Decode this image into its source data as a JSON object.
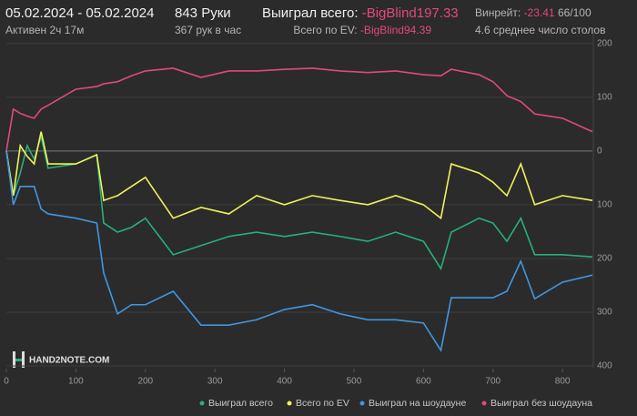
{
  "header": {
    "date_range": "05.02.2024 - 05.02.2024",
    "active": "Активен 2ч 17м",
    "hands": "843 Руки",
    "hands_per_hour": "367 рук в час",
    "won_label": "Выиграл всего:",
    "won_value": "-BigBlind197.33",
    "ev_label": "Всего по EV:",
    "ev_value": "-BigBlind94.39",
    "winrate_label": "Винрейт:",
    "winrate_value": "-23.41",
    "winrate_unit": "66/100",
    "tables": "4.6 среднее число столов",
    "logo": "HAND2NOTE.COM"
  },
  "chart_data": {
    "type": "line",
    "x": [
      0,
      10,
      20,
      30,
      40,
      50,
      60,
      100,
      130,
      140,
      160,
      180,
      200,
      240,
      280,
      320,
      360,
      400,
      440,
      480,
      520,
      560,
      600,
      625,
      640,
      680,
      700,
      720,
      740,
      760,
      800,
      843
    ],
    "series": [
      {
        "name": "Выиграл всего",
        "color": "#27b07a",
        "values": [
          0,
          -83,
          -41,
          10,
          -15,
          27,
          -32,
          -24,
          -7,
          -134,
          -151,
          -142,
          -125,
          -193,
          -176,
          -159,
          -151,
          -159,
          -151,
          -159,
          -168,
          -151,
          -168,
          -219,
          -151,
          -125,
          -134,
          -168,
          -125,
          -193,
          -193,
          -197
        ]
      },
      {
        "name": "Всего по EV",
        "color": "#f2f25a",
        "values": [
          0,
          -83,
          10,
          -10,
          -24,
          36,
          -24,
          -24,
          -7,
          -92,
          -83,
          -66,
          -49,
          -125,
          -105,
          -117,
          -83,
          -100,
          -83,
          -92,
          -100,
          -83,
          -100,
          -125,
          -24,
          -41,
          -58,
          -83,
          -24,
          -100,
          -83,
          -92
        ]
      },
      {
        "name": "Выиграл на шоудауне",
        "color": "#3f97e0",
        "values": [
          0,
          -100,
          -66,
          -66,
          -66,
          -108,
          -117,
          -125,
          -134,
          -227,
          -303,
          -286,
          -286,
          -261,
          -324,
          -324,
          -314,
          -295,
          -286,
          -303,
          -314,
          -314,
          -320,
          -371,
          -273,
          -273,
          -273,
          -261,
          -205,
          -275,
          -244,
          -231
        ]
      },
      {
        "name": "Выиграл без шоудауна",
        "color": "#e2487f",
        "values": [
          0,
          78,
          70,
          65,
          61,
          78,
          85,
          115,
          120,
          125,
          129,
          140,
          149,
          154,
          137,
          149,
          149,
          152,
          154,
          149,
          146,
          149,
          142,
          140,
          152,
          142,
          129,
          103,
          92,
          69,
          61,
          36
        ]
      }
    ],
    "xlim": [
      0,
      843
    ],
    "xticks": [
      0,
      100,
      200,
      300,
      400,
      500,
      600,
      700,
      800
    ],
    "ylim": [
      -405,
      220
    ],
    "yticks": [
      200,
      100,
      0,
      {
        "value": -100,
        "label": "100"
      },
      {
        "value": -200,
        "label": "200"
      },
      {
        "value": -300,
        "label": "300"
      },
      {
        "value": -400,
        "label": "400"
      }
    ],
    "grid": true
  }
}
